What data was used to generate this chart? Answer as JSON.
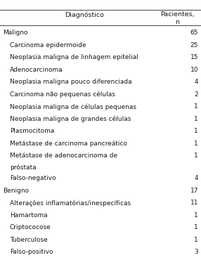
{
  "title_col1": "Diagnóstico",
  "title_col2": "Pacientes,\nn",
  "rows": [
    {
      "label": "Maligno",
      "value": "65",
      "indent": false
    },
    {
      "label": "Carcinoma epidermoide",
      "value": "25",
      "indent": true
    },
    {
      "label": "Neoplasia maligna de linhagem epitelial",
      "value": "15",
      "indent": true
    },
    {
      "label": "Adenocarcinoma",
      "value": "10",
      "indent": true
    },
    {
      "label": "Neoplasia maligna pouco diferenciada",
      "value": "4",
      "indent": true
    },
    {
      "label": "Carcinoma não pequenas células",
      "value": "2",
      "indent": true
    },
    {
      "label": "Neoplasia maligna de células pequenas",
      "value": "1",
      "indent": true
    },
    {
      "label": "Neoplasia maligna de grandes células",
      "value": "1",
      "indent": true
    },
    {
      "label": "Plasmocitoma",
      "value": "1",
      "indent": true
    },
    {
      "label": "Metástase de carcinoma pancreático",
      "value": "1",
      "indent": true
    },
    {
      "label": "Metástase de adenocarcinoma de",
      "value": "1",
      "indent": true,
      "extra_line": "próstata"
    },
    {
      "label": "Falso-negativo",
      "value": "4",
      "indent": true
    },
    {
      "label": "Benigno",
      "value": "17",
      "indent": false
    },
    {
      "label": "Alterações inflamatórias/inespecíficas",
      "value": "11",
      "indent": true
    },
    {
      "label": "Hamartoma",
      "value": "1",
      "indent": true
    },
    {
      "label": "Criptococose",
      "value": "1",
      "indent": true
    },
    {
      "label": "Tuberculose",
      "value": "1",
      "indent": true
    },
    {
      "label": "Falso-positivo",
      "value": "3",
      "indent": true
    }
  ],
  "bg_color": "#ffffff",
  "text_color": "#1a1a1a",
  "line_color": "#555555",
  "font_size": 6.5,
  "header_font_size": 6.8,
  "indent_pts": 12
}
